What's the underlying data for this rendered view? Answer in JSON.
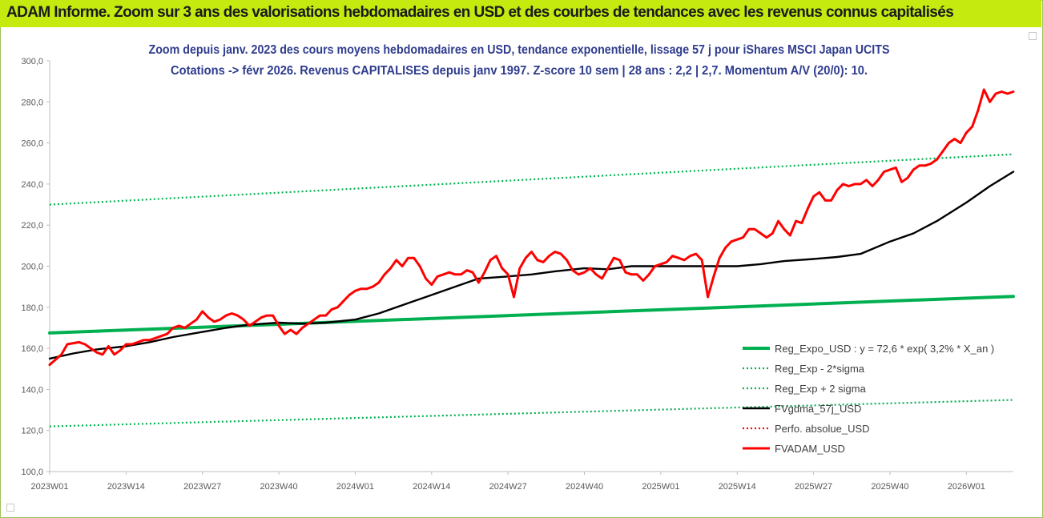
{
  "banner": {
    "title": "ADAM Informe. Zoom sur 3 ans des valorisations hebdomadaires en USD et des courbes de tendances avec les revenus connus capitalisés",
    "background": "#c4ea10"
  },
  "chart_data": {
    "type": "line",
    "title_line1": "Zoom depuis janv. 2023 des cours moyens hebdomadaires en USD, tendance exponentielle, lissage 57 j pour iShares MSCI Japan UCITS",
    "title_line2": "Cotations -> févr 2026. Revenus CAPITALISES depuis janv 1997. Z-score 10 sem | 28 ans : 2,2 | 2,7. Momentum A/V (20/0): 10.",
    "x_ticks": [
      "2023W01",
      "2023W14",
      "2023W27",
      "2023W40",
      "2024W01",
      "2024W14",
      "2024W27",
      "2024W40",
      "2025W01",
      "2025W14",
      "2025W27",
      "2025W40",
      "2026W01"
    ],
    "y_ticks": [
      "100,0",
      "120,0",
      "140,0",
      "160,0",
      "180,0",
      "200,0",
      "220,0",
      "240,0",
      "260,0",
      "280,0",
      "300,0"
    ],
    "ylim": [
      100,
      300
    ],
    "x_range_weeks": [
      0,
      164
    ],
    "grid": false,
    "legend_position": "bottom-right",
    "series": [
      {
        "name": "Reg_Expo_USD : y = 72,6 * exp( 3,2% *  X_an )",
        "color": "#00b050",
        "style": "thick",
        "x": [
          0,
          164
        ],
        "y": [
          167.5,
          185.3
        ]
      },
      {
        "name": "Reg_Exp - 2*sigma",
        "color": "#00b050",
        "style": "dotted",
        "x": [
          0,
          164
        ],
        "y": [
          122.0,
          134.9
        ]
      },
      {
        "name": "Reg_Exp + 2 sigma",
        "color": "#00b050",
        "style": "dotted",
        "x": [
          0,
          164
        ],
        "y": [
          230.0,
          254.5
        ]
      },
      {
        "name": "FVgdma_57j_USD",
        "color": "#000000",
        "style": "solid",
        "x": [
          0,
          4,
          8,
          13,
          17,
          21,
          26,
          30,
          34,
          39,
          43,
          47,
          52,
          56,
          60,
          64,
          69,
          73,
          78,
          82,
          86,
          91,
          95,
          99,
          104,
          108,
          112,
          117,
          121,
          125,
          130,
          134,
          138,
          143,
          147,
          151,
          156,
          160,
          164
        ],
        "y": [
          155,
          157.5,
          159.5,
          161,
          163,
          165.5,
          168,
          170,
          171.5,
          172.5,
          172,
          172.5,
          174,
          177,
          181,
          185,
          190,
          194,
          195,
          196,
          197.5,
          199,
          198.5,
          200,
          200,
          200,
          200,
          200,
          201,
          202.5,
          203.5,
          204.5,
          206,
          212,
          216,
          222,
          231,
          239,
          246
        ]
      },
      {
        "name": "Perfo. absolue_USD",
        "color": "#ff0000",
        "style": "dotted",
        "x": [],
        "y": []
      },
      {
        "name": "FVADAM_USD",
        "color": "#ff0000",
        "style": "thick",
        "x": [
          0,
          2,
          3,
          5,
          6,
          7,
          8,
          9,
          10,
          11,
          12,
          13,
          14,
          15,
          16,
          17,
          18,
          19,
          20,
          21,
          22,
          23,
          24,
          25,
          26,
          27,
          28,
          29,
          30,
          31,
          32,
          33,
          34,
          35,
          36,
          37,
          38,
          39,
          40,
          41,
          42,
          43,
          44,
          45,
          46,
          47,
          48,
          49,
          50,
          51,
          52,
          53,
          54,
          55,
          56,
          57,
          58,
          59,
          60,
          61,
          62,
          63,
          64,
          65,
          66,
          67,
          68,
          69,
          70,
          71,
          72,
          73,
          74,
          75,
          76,
          77,
          78,
          79,
          80,
          81,
          82,
          83,
          84,
          85,
          86,
          87,
          88,
          89,
          90,
          91,
          92,
          93,
          94,
          95,
          96,
          97,
          98,
          99,
          100,
          101,
          102,
          103,
          104,
          105,
          106,
          107,
          108,
          109,
          110,
          111,
          112,
          113,
          114,
          115,
          116,
          117,
          118,
          119,
          120,
          121,
          122,
          123,
          124,
          125,
          126,
          127,
          128,
          129,
          130,
          131,
          132,
          133,
          134,
          135,
          136,
          137,
          138,
          139,
          140,
          141,
          142,
          143,
          144,
          145,
          146,
          147,
          148,
          149,
          150,
          151,
          152,
          153,
          154,
          155,
          156,
          157,
          158,
          159,
          160,
          161,
          162,
          163,
          164
        ],
        "y": [
          152,
          157,
          162,
          163,
          162,
          160,
          158,
          157,
          161,
          157,
          159,
          162,
          162,
          163,
          164,
          164,
          165,
          166,
          167,
          170,
          171,
          170,
          172,
          174,
          178,
          175,
          173,
          174,
          176,
          177,
          176,
          174,
          171,
          173,
          175,
          176,
          176,
          171,
          167,
          169,
          167,
          170,
          172,
          174,
          176,
          176,
          179,
          180,
          183,
          186,
          188,
          189,
          189,
          190,
          192,
          196,
          199,
          203,
          200,
          204,
          204,
          200,
          194,
          191,
          195,
          196,
          197,
          196,
          196,
          198,
          197,
          192,
          197,
          203,
          205,
          199,
          196,
          185,
          199,
          204,
          207,
          203,
          202,
          205,
          207,
          206,
          203,
          198,
          196,
          197,
          199,
          196,
          194,
          199,
          204,
          203,
          197,
          196,
          196,
          193,
          196,
          200,
          201,
          202,
          205,
          204,
          203,
          205,
          206,
          203,
          185,
          195,
          204,
          209,
          212,
          213,
          214,
          218,
          218,
          216,
          214,
          216,
          222,
          218,
          215,
          222,
          221,
          228,
          234,
          236,
          232,
          232,
          237,
          240,
          239,
          240,
          240,
          242,
          239,
          242,
          246,
          247,
          248,
          241,
          243,
          247,
          249,
          249,
          250,
          252,
          256,
          260,
          262,
          260,
          265,
          268,
          276,
          286,
          280,
          284,
          285,
          284,
          285
        ]
      }
    ]
  }
}
